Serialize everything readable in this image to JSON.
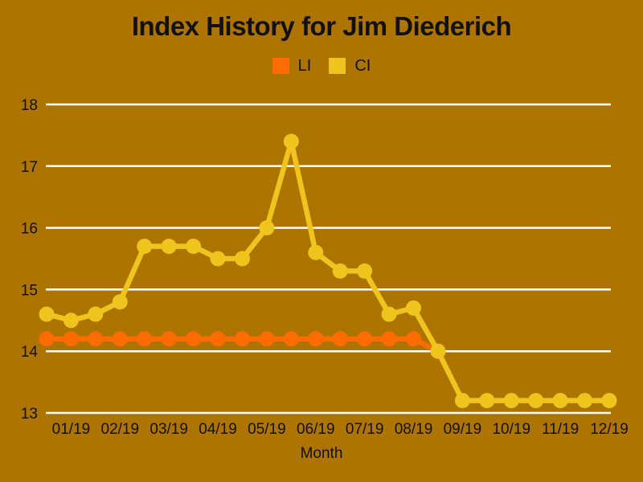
{
  "colors": {
    "background": "#AE7402",
    "gridline": "#FFFFFF",
    "text": "#111111",
    "li_series": "#FD6B03",
    "ci_series": "#EFC51D"
  },
  "chart_data": {
    "type": "line",
    "title": "Index History for Jim Diederich",
    "xlabel": "Month",
    "ylabel": "",
    "grid": "horizontal",
    "legend_position": "top-center",
    "yticks": [
      13,
      14,
      15,
      16,
      17,
      18
    ],
    "ylim": [
      13,
      18
    ],
    "samples_per_month": 2,
    "x_tick_labels": [
      "01/19",
      "02/19",
      "03/19",
      "04/19",
      "05/19",
      "06/19",
      "07/19",
      "08/19",
      "09/19",
      "10/19",
      "11/19",
      "12/19"
    ],
    "x_label_sample_indices": [
      1,
      3,
      5,
      7,
      9,
      11,
      13,
      15,
      17,
      19,
      21,
      23
    ],
    "series": [
      {
        "name": "LI",
        "color": "#FD6B03",
        "values": [
          14.2,
          14.2,
          14.2,
          14.2,
          14.2,
          14.2,
          14.2,
          14.2,
          14.2,
          14.2,
          14.2,
          14.2,
          14.2,
          14.2,
          14.2,
          14.2,
          14.0,
          null,
          null,
          null,
          null,
          null,
          null,
          null
        ]
      },
      {
        "name": "CI",
        "color": "#EFC51D",
        "values": [
          14.6,
          14.5,
          14.6,
          14.8,
          15.7,
          15.7,
          15.7,
          15.5,
          15.5,
          16.0,
          17.4,
          15.6,
          15.3,
          15.3,
          14.6,
          14.7,
          14.0,
          13.2,
          13.2,
          13.2,
          13.2,
          13.2,
          13.2,
          13.2
        ]
      }
    ]
  }
}
